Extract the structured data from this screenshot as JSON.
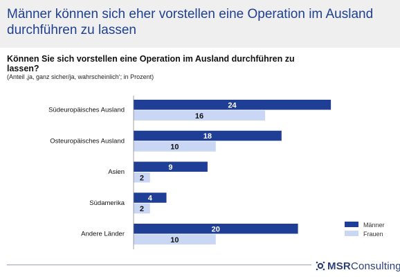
{
  "header": {
    "title": "Männer können sich eher vorstellen eine Operation im Ausland durchführen zu lassen"
  },
  "question": "Können Sie sich vorstellen eine Operation im Ausland durchführen zu lassen?",
  "subtitle": "(Anteil ‚ja, ganz sicher/ja, wahrscheinlich‘; in Prozent)",
  "colors": {
    "men": "#1f3f96",
    "women": "#c9d6f4"
  },
  "chart_data": {
    "type": "bar",
    "orientation": "horizontal",
    "title": "Können Sie sich vorstellen eine Operation im Ausland durchführen zu lassen?",
    "subtitle": "(Anteil ‚ja, ganz sicher/ja, wahrscheinlich‘; in Prozent)",
    "categories": [
      "Südeuropäisches Ausland",
      "Osteuropäisches Ausland",
      "Asien",
      "Südamerika",
      "Andere Länder"
    ],
    "series": [
      {
        "name": "Männer",
        "values": [
          24,
          18,
          9,
          4,
          20
        ]
      },
      {
        "name": "Frauen",
        "values": [
          16,
          10,
          2,
          2,
          10
        ]
      }
    ],
    "xlim": [
      0,
      30
    ],
    "grid": false,
    "data_labels": true,
    "legend": "bottom-right",
    "xlabel": "",
    "ylabel": ""
  },
  "footer": {
    "brand_bold": "MSR",
    "brand_rest": "Consulting"
  }
}
